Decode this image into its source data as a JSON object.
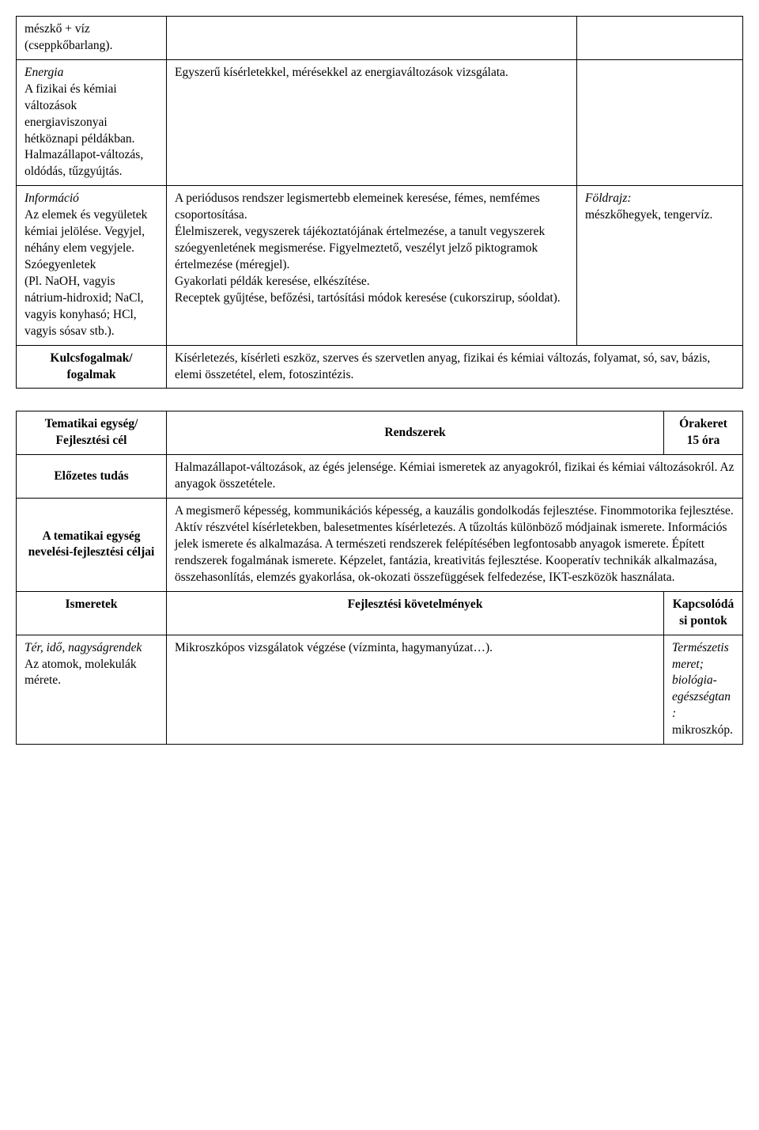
{
  "table1": {
    "row1": {
      "col1": "mészkő + víz (cseppkőbarlang).",
      "col2": "",
      "col3": ""
    },
    "row2": {
      "col1_title": "Energia",
      "col1_body": "A fizikai és kémiai változások energiaviszonyai hétköznapi példákban.\nHalmazállapot-változás, oldódás, tűzgyújtás.",
      "col2": "Egyszerű kísérletekkel, mérésekkel az energiaváltozások vizsgálata.",
      "col3": ""
    },
    "row3": {
      "col1_title": "Információ",
      "col1_body": "Az elemek és vegyületek kémiai jelölése. Vegyjel, néhány elem vegyjele. Szóegyenletek\n(Pl. NaOH, vagyis nátrium-hidroxid; NaCl, vagyis konyhasó; HCl, vagyis sósav stb.).",
      "col2": "A periódusos rendszer legismertebb elemeinek keresése, fémes, nemfémes csoportosítása.\nÉlelmiszerek, vegyszerek tájékoztatójának értelmezése, a tanult vegyszerek szóegyenletének megismerése. Figyelmeztető, veszélyt jelző piktogramok értelmezése (méregjel).\nGyakorlati példák keresése, elkészítése.\nReceptek gyűjtése, befőzési, tartósítási módok keresése (cukorszirup, sóoldat).",
      "col3_title": "Földrajz:",
      "col3_body": "mészkőhegyek, tengervíz."
    },
    "row4": {
      "col1": "Kulcsfogalmak/\nfogalmak",
      "col2": "Kísérletezés, kísérleti eszköz, szerves és szervetlen anyag, fizikai és kémiai változás, folyamat, só, sav, bázis, elemi összetétel, elem, fotoszintézis."
    }
  },
  "table2": {
    "row1": {
      "col1": "Tematikai egység/\nFejlesztési cél",
      "col2": "Rendszerek",
      "col3": "Órakeret\n15 óra"
    },
    "row2": {
      "col1": "Előzetes tudás",
      "col2": "Halmazállapot-változások, az égés jelensége. Kémiai ismeretek az anyagokról, fizikai és kémiai változásokról. Az anyagok összetétele."
    },
    "row3": {
      "col1": "A tematikai egység nevelési-fejlesztési céljai",
      "col2": "A megismerő képesség, kommunikációs képesség, a kauzális gondolkodás fejlesztése. Finommotorika fejlesztése. Aktív részvétel kísérletekben, balesetmentes kísérletezés. A tűzoltás különböző módjainak ismerete. Információs jelek ismerete és alkalmazása. A természeti rendszerek felépítésében legfontosabb anyagok ismerete. Épített rendszerek fogalmának ismerete. Képzelet, fantázia, kreativitás fejlesztése. Kooperatív technikák alkalmazása, összehasonlítás, elemzés gyakorlása, ok-okozati összefüggések felfedezése, IKT-eszközök használata."
    },
    "row4": {
      "col1": "Ismeretek",
      "col2": "Fejlesztési követelmények",
      "col3": "Kapcsolódási pontok"
    },
    "row5": {
      "col1_title": "Tér, idő, nagyságrendek",
      "col1_body": "Az atomok, molekulák mérete.",
      "col2": "Mikroszkópos vizsgálatok végzése (vízminta, hagymanyúzat…).",
      "col3_title": "Természetismeret; biológia-egészségtan:",
      "col3_body": "mikroszkóp."
    }
  }
}
